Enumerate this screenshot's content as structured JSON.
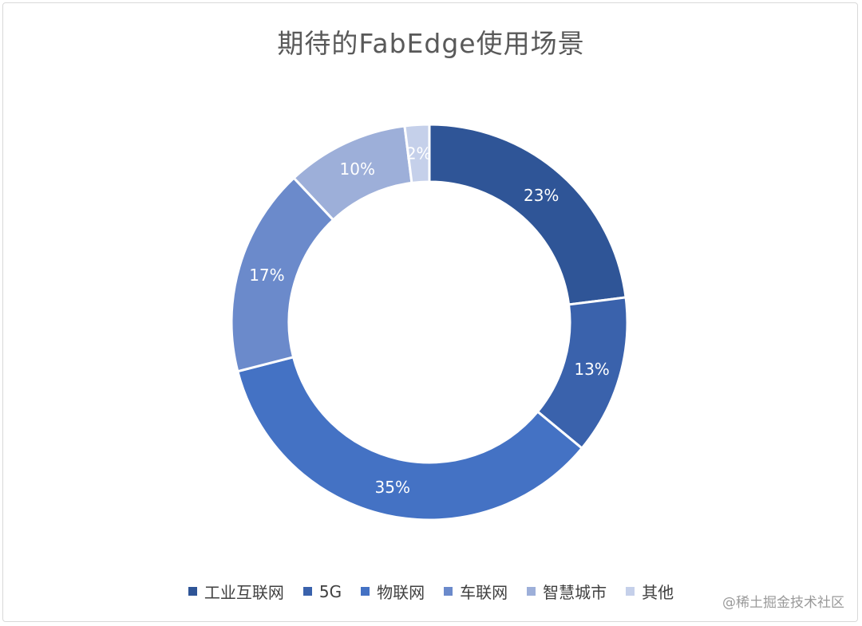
{
  "chart_data": {
    "type": "pie",
    "variant": "doughnut",
    "title": "期待的FabEdge使用场景",
    "categories": [
      "工业互联网",
      "5G",
      "物联网",
      "车联网",
      "智慧城市",
      "其他"
    ],
    "values": [
      23,
      13,
      35,
      17,
      10,
      2
    ],
    "data_labels": [
      "23%",
      "13%",
      "35%",
      "17%",
      "10%",
      "2%"
    ],
    "colors": [
      "#2f5597",
      "#3a62ac",
      "#4472c4",
      "#6b8acb",
      "#9dafd9",
      "#c5d0ea"
    ],
    "legend_position": "bottom"
  },
  "watermark": "@稀土掘金技术社区"
}
